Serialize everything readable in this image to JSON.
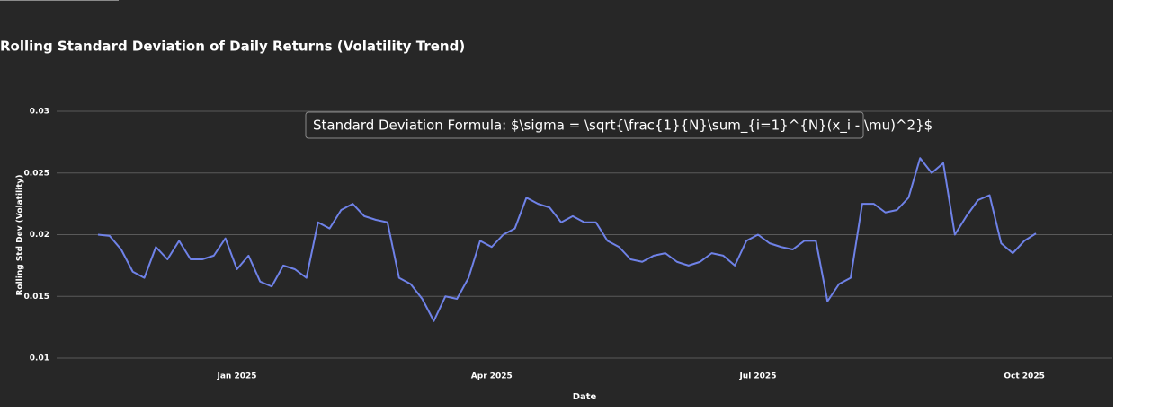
{
  "chart_data": {
    "type": "line",
    "title": "Rolling Standard Deviation of Daily Returns (Volatility Trend)",
    "annotation": "Standard Deviation Formula: $\\sigma = \\sqrt{\\frac{1}{N}\\sum_{i=1}^{N}(x_i - \\mu)^2}$",
    "x_label": "Date",
    "y_label": "Rolling Std Dev (Volatility)",
    "categories": [
      null,
      null,
      null,
      null,
      null,
      null,
      null,
      null,
      null,
      null,
      null,
      null,
      "Jan 2025",
      null,
      null,
      null,
      null,
      null,
      null,
      null,
      null,
      null,
      null,
      null,
      null,
      null,
      null,
      null,
      null,
      null,
      null,
      null,
      null,
      null,
      "Apr 2025",
      null,
      null,
      null,
      null,
      null,
      null,
      null,
      null,
      null,
      null,
      null,
      null,
      null,
      null,
      null,
      null,
      null,
      null,
      null,
      null,
      null,
      null,
      "Jul 2025",
      null,
      null,
      null,
      null,
      null,
      null,
      null,
      null,
      null,
      null,
      null,
      null,
      null,
      null,
      null,
      null,
      null,
      null,
      null,
      null,
      null,
      null,
      "Oct 2025",
      null
    ],
    "values": [
      0.02,
      0.0199,
      0.0188,
      0.017,
      0.0165,
      0.019,
      0.018,
      0.0195,
      0.018,
      0.018,
      0.0183,
      0.0197,
      0.0172,
      0.0183,
      0.0162,
      0.0158,
      0.0175,
      0.0172,
      0.0165,
      0.021,
      0.0205,
      0.022,
      0.0225,
      0.0215,
      0.0212,
      0.021,
      0.0165,
      0.016,
      0.0148,
      0.013,
      0.015,
      0.0148,
      0.0165,
      0.0195,
      0.019,
      0.02,
      0.0205,
      0.023,
      0.0225,
      0.0222,
      0.021,
      0.0215,
      0.021,
      0.021,
      0.0195,
      0.019,
      0.018,
      0.0178,
      0.0183,
      0.0185,
      0.0178,
      0.0175,
      0.0178,
      0.0185,
      0.0183,
      0.0175,
      0.0195,
      0.02,
      0.0193,
      0.019,
      0.0188,
      0.0195,
      0.0195,
      0.0146,
      0.016,
      0.0165,
      0.0225,
      0.0225,
      0.0218,
      0.022,
      0.023,
      0.0262,
      0.025,
      0.0258,
      0.02,
      0.0215,
      0.0228,
      0.0232,
      0.0193,
      0.0185,
      0.0195,
      0.0201
    ],
    "color": "#6f82e8",
    "ylim": [
      0.01,
      0.03
    ],
    "yticks": [
      0.01,
      0.015,
      0.02,
      0.025,
      0.03
    ],
    "grid": true
  }
}
